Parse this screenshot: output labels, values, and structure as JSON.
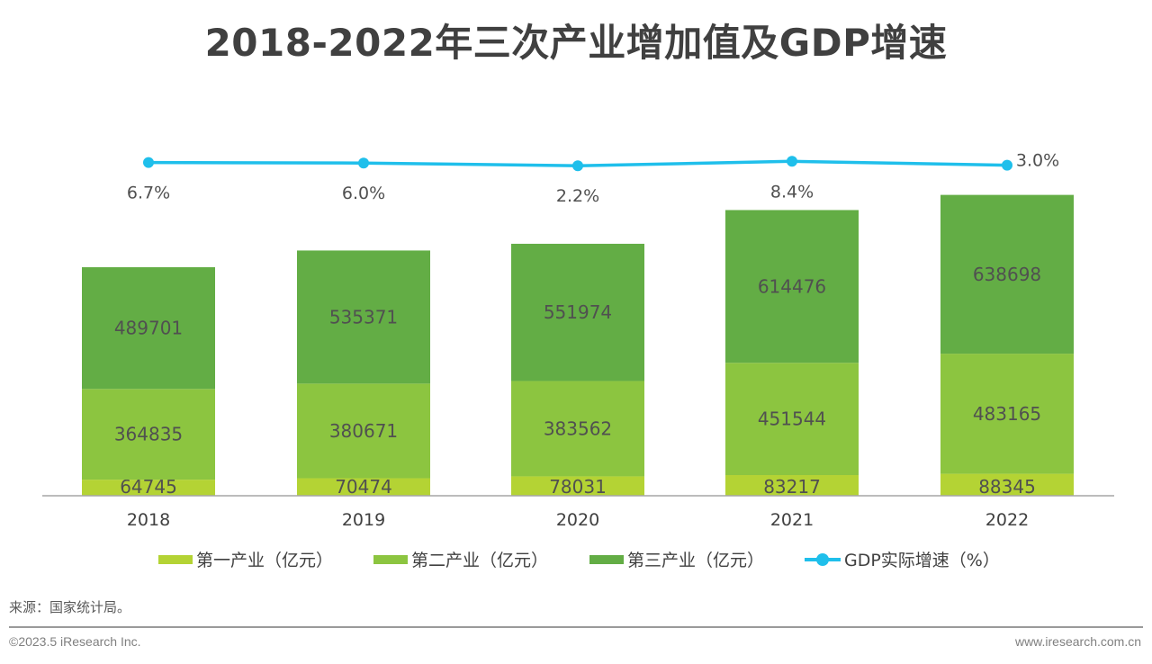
{
  "chart_data": {
    "type": "bar",
    "stacked": true,
    "title": "2018-2022年三次产业增加值及GDP增速",
    "categories": [
      "2018",
      "2019",
      "2020",
      "2021",
      "2022"
    ],
    "series": [
      {
        "name": "第一产业（亿元）",
        "type": "bar",
        "color": "#b4d334",
        "values": [
          64745,
          70474,
          78031,
          83217,
          88345
        ]
      },
      {
        "name": "第二产业（亿元）",
        "type": "bar",
        "color": "#8cc540",
        "values": [
          364835,
          380671,
          383562,
          451544,
          483165
        ]
      },
      {
        "name": "第三产业（亿元）",
        "type": "bar",
        "color": "#63ad45",
        "values": [
          489701,
          535371,
          551974,
          614476,
          638698
        ]
      },
      {
        "name": "GDP实际增速（%）",
        "type": "line",
        "color": "#1fbfeb",
        "values": [
          6.7,
          6.0,
          2.2,
          8.4,
          3.0
        ],
        "labels": [
          "6.7%",
          "6.0%",
          "2.2%",
          "8.4%",
          "3.0%"
        ]
      }
    ],
    "grid": false,
    "legend": "bottom",
    "xlabel": "",
    "ylabel": ""
  },
  "footer": {
    "source": "来源：国家统计局。",
    "copyright": "©2023.5 iResearch Inc.",
    "website": "www.iresearch.com.cn"
  }
}
